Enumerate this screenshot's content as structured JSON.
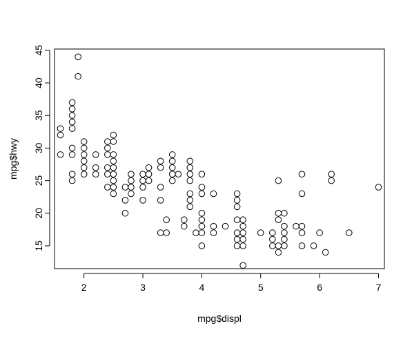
{
  "chart_data": {
    "type": "scatter",
    "xlabel": "mpg$displ",
    "ylabel": "mpg$hwy",
    "xlim": [
      1.5,
      7.1
    ],
    "ylim": [
      11.5,
      45.2
    ],
    "x_ticks": [
      2,
      3,
      4,
      5,
      6,
      7
    ],
    "y_ticks": [
      15,
      20,
      25,
      30,
      35,
      40,
      45
    ],
    "grid": false,
    "marker": "open-circle",
    "points": [
      {
        "x": 1.6,
        "y": 33
      },
      {
        "x": 1.6,
        "y": 32
      },
      {
        "x": 1.6,
        "y": 29
      },
      {
        "x": 1.8,
        "y": 37
      },
      {
        "x": 1.8,
        "y": 36
      },
      {
        "x": 1.8,
        "y": 35
      },
      {
        "x": 1.8,
        "y": 34
      },
      {
        "x": 1.8,
        "y": 33
      },
      {
        "x": 1.8,
        "y": 30
      },
      {
        "x": 1.8,
        "y": 29
      },
      {
        "x": 1.8,
        "y": 26
      },
      {
        "x": 1.8,
        "y": 25
      },
      {
        "x": 1.9,
        "y": 44
      },
      {
        "x": 1.9,
        "y": 41
      },
      {
        "x": 2.0,
        "y": 31
      },
      {
        "x": 2.0,
        "y": 30
      },
      {
        "x": 2.0,
        "y": 29
      },
      {
        "x": 2.0,
        "y": 28
      },
      {
        "x": 2.0,
        "y": 27
      },
      {
        "x": 2.0,
        "y": 26
      },
      {
        "x": 2.2,
        "y": 29
      },
      {
        "x": 2.2,
        "y": 27
      },
      {
        "x": 2.2,
        "y": 26
      },
      {
        "x": 2.4,
        "y": 31
      },
      {
        "x": 2.4,
        "y": 30
      },
      {
        "x": 2.4,
        "y": 29
      },
      {
        "x": 2.4,
        "y": 27
      },
      {
        "x": 2.4,
        "y": 26
      },
      {
        "x": 2.4,
        "y": 24
      },
      {
        "x": 2.5,
        "y": 32
      },
      {
        "x": 2.5,
        "y": 31
      },
      {
        "x": 2.5,
        "y": 29
      },
      {
        "x": 2.5,
        "y": 28
      },
      {
        "x": 2.5,
        "y": 27
      },
      {
        "x": 2.5,
        "y": 26
      },
      {
        "x": 2.5,
        "y": 25
      },
      {
        "x": 2.5,
        "y": 24
      },
      {
        "x": 2.5,
        "y": 23
      },
      {
        "x": 2.7,
        "y": 24
      },
      {
        "x": 2.7,
        "y": 22
      },
      {
        "x": 2.7,
        "y": 20
      },
      {
        "x": 2.8,
        "y": 26
      },
      {
        "x": 2.8,
        "y": 25
      },
      {
        "x": 2.8,
        "y": 24
      },
      {
        "x": 2.8,
        "y": 23
      },
      {
        "x": 3.0,
        "y": 26
      },
      {
        "x": 3.0,
        "y": 25
      },
      {
        "x": 3.0,
        "y": 24
      },
      {
        "x": 3.0,
        "y": 22
      },
      {
        "x": 3.1,
        "y": 27
      },
      {
        "x": 3.1,
        "y": 26
      },
      {
        "x": 3.1,
        "y": 25
      },
      {
        "x": 3.3,
        "y": 28
      },
      {
        "x": 3.3,
        "y": 27
      },
      {
        "x": 3.3,
        "y": 24
      },
      {
        "x": 3.3,
        "y": 22
      },
      {
        "x": 3.3,
        "y": 17
      },
      {
        "x": 3.4,
        "y": 19
      },
      {
        "x": 3.4,
        "y": 17
      },
      {
        "x": 3.5,
        "y": 29
      },
      {
        "x": 3.5,
        "y": 28
      },
      {
        "x": 3.5,
        "y": 27
      },
      {
        "x": 3.5,
        "y": 26
      },
      {
        "x": 3.5,
        "y": 25
      },
      {
        "x": 3.6,
        "y": 26
      },
      {
        "x": 3.7,
        "y": 19
      },
      {
        "x": 3.7,
        "y": 18
      },
      {
        "x": 3.8,
        "y": 28
      },
      {
        "x": 3.8,
        "y": 27
      },
      {
        "x": 3.8,
        "y": 26
      },
      {
        "x": 3.8,
        "y": 25
      },
      {
        "x": 3.8,
        "y": 23
      },
      {
        "x": 3.8,
        "y": 22
      },
      {
        "x": 3.8,
        "y": 21
      },
      {
        "x": 3.9,
        "y": 17
      },
      {
        "x": 4.0,
        "y": 26
      },
      {
        "x": 4.0,
        "y": 24
      },
      {
        "x": 4.0,
        "y": 23
      },
      {
        "x": 4.0,
        "y": 20
      },
      {
        "x": 4.0,
        "y": 19
      },
      {
        "x": 4.0,
        "y": 18
      },
      {
        "x": 4.0,
        "y": 17
      },
      {
        "x": 4.0,
        "y": 15
      },
      {
        "x": 4.2,
        "y": 23
      },
      {
        "x": 4.2,
        "y": 18
      },
      {
        "x": 4.2,
        "y": 17
      },
      {
        "x": 4.4,
        "y": 18
      },
      {
        "x": 4.6,
        "y": 23
      },
      {
        "x": 4.6,
        "y": 22
      },
      {
        "x": 4.6,
        "y": 21
      },
      {
        "x": 4.6,
        "y": 19
      },
      {
        "x": 4.6,
        "y": 17
      },
      {
        "x": 4.6,
        "y": 16
      },
      {
        "x": 4.6,
        "y": 15
      },
      {
        "x": 4.7,
        "y": 19
      },
      {
        "x": 4.7,
        "y": 18
      },
      {
        "x": 4.7,
        "y": 17
      },
      {
        "x": 4.7,
        "y": 16
      },
      {
        "x": 4.7,
        "y": 15
      },
      {
        "x": 4.7,
        "y": 12
      },
      {
        "x": 5.0,
        "y": 17
      },
      {
        "x": 5.2,
        "y": 17
      },
      {
        "x": 5.2,
        "y": 16
      },
      {
        "x": 5.2,
        "y": 15
      },
      {
        "x": 5.3,
        "y": 25
      },
      {
        "x": 5.3,
        "y": 20
      },
      {
        "x": 5.3,
        "y": 19
      },
      {
        "x": 5.3,
        "y": 15
      },
      {
        "x": 5.3,
        "y": 14
      },
      {
        "x": 5.4,
        "y": 20
      },
      {
        "x": 5.4,
        "y": 18
      },
      {
        "x": 5.4,
        "y": 17
      },
      {
        "x": 5.4,
        "y": 16
      },
      {
        "x": 5.4,
        "y": 15
      },
      {
        "x": 5.6,
        "y": 18
      },
      {
        "x": 5.7,
        "y": 26
      },
      {
        "x": 5.7,
        "y": 23
      },
      {
        "x": 5.7,
        "y": 18
      },
      {
        "x": 5.7,
        "y": 17
      },
      {
        "x": 5.7,
        "y": 15
      },
      {
        "x": 5.9,
        "y": 15
      },
      {
        "x": 6.0,
        "y": 17
      },
      {
        "x": 6.1,
        "y": 14
      },
      {
        "x": 6.2,
        "y": 26
      },
      {
        "x": 6.2,
        "y": 25
      },
      {
        "x": 6.5,
        "y": 17
      },
      {
        "x": 7.0,
        "y": 24
      }
    ]
  }
}
